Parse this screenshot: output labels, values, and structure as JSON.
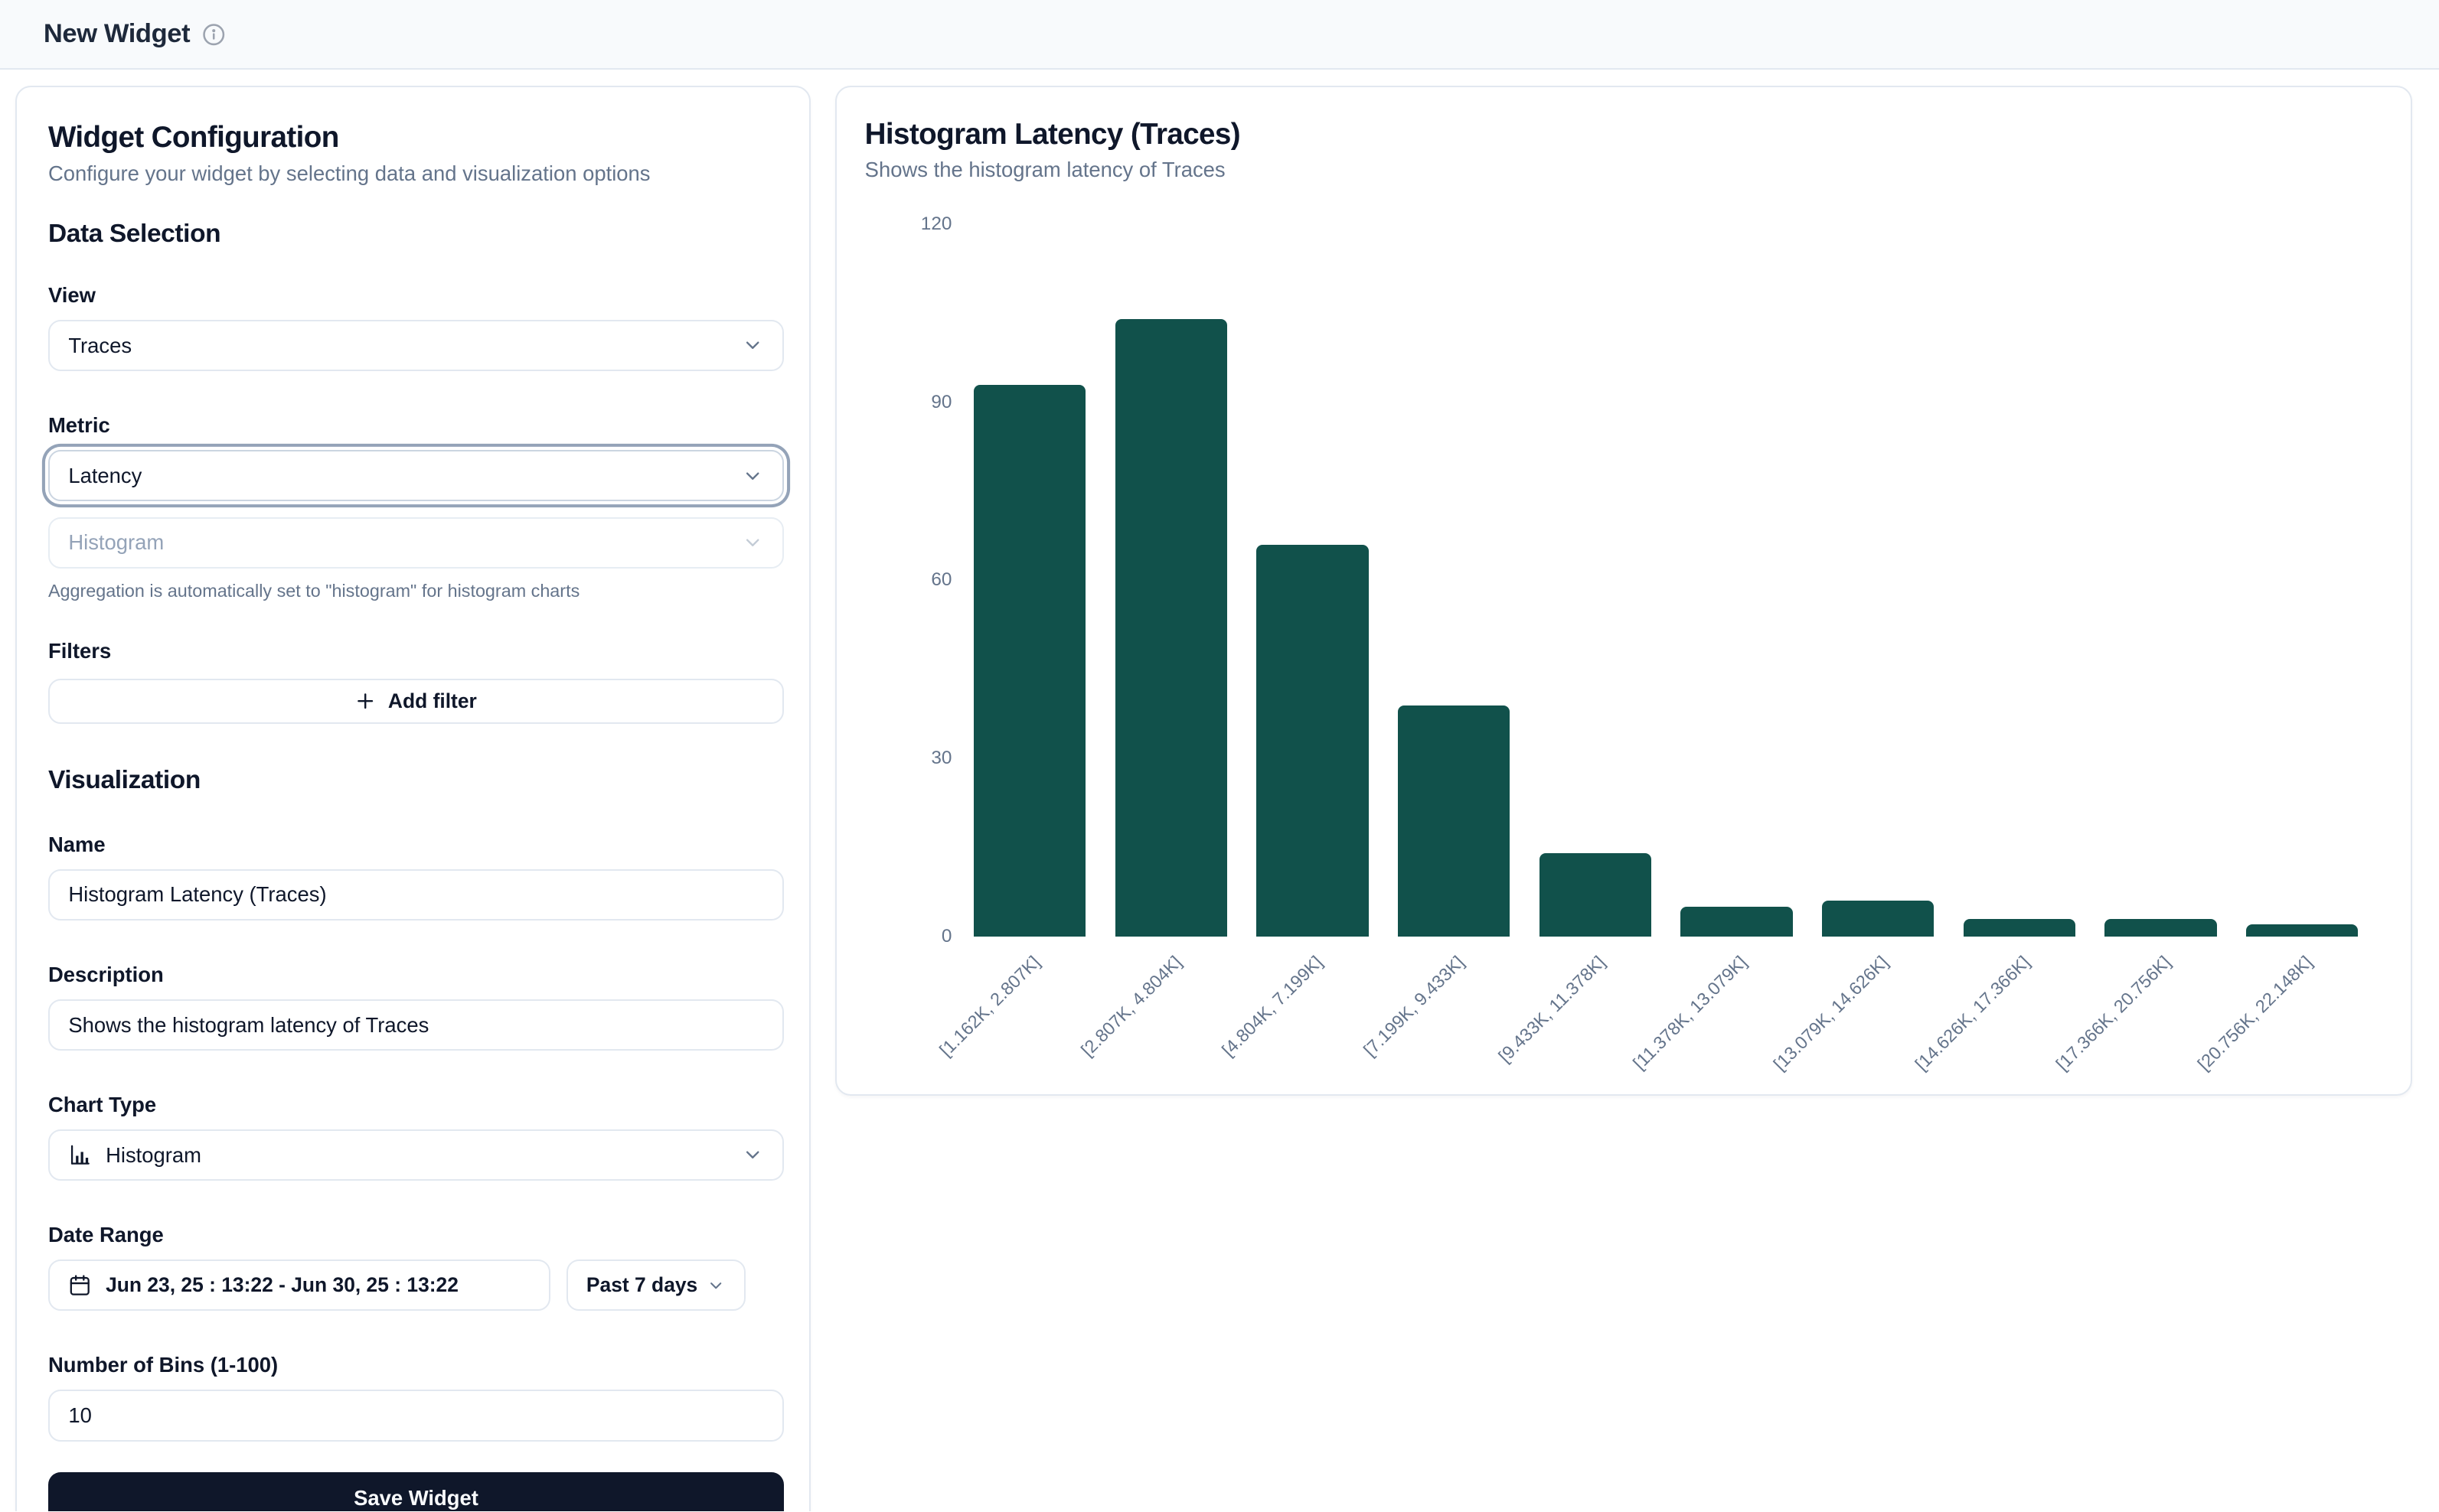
{
  "header": {
    "title": "New Widget"
  },
  "config_panel": {
    "title": "Widget Configuration",
    "subtitle": "Configure your widget by selecting data and visualization options",
    "data_selection": {
      "heading": "Data Selection",
      "view_label": "View",
      "view_value": "Traces",
      "metric_label": "Metric",
      "metric_value": "Latency",
      "aggregation_value": "Histogram",
      "aggregation_help": "Aggregation is automatically set to \"histogram\" for histogram charts",
      "filters_label": "Filters",
      "add_filter_label": "Add filter"
    },
    "visualization": {
      "heading": "Visualization",
      "name_label": "Name",
      "name_value": "Histogram Latency (Traces)",
      "description_label": "Description",
      "description_value": "Shows the histogram latency of Traces",
      "chart_type_label": "Chart Type",
      "chart_type_value": "Histogram",
      "date_range_label": "Date Range",
      "date_range_value": "Jun 23, 25 : 13:22 - Jun 30, 25 : 13:22",
      "date_preset_value": "Past 7 days",
      "bins_label": "Number of Bins (1-100)",
      "bins_value": "10"
    },
    "save_label": "Save Widget"
  },
  "preview_panel": {
    "title": "Histogram Latency (Traces)",
    "subtitle": "Shows the histogram latency of Traces"
  },
  "chart_data": {
    "type": "bar",
    "title": "Histogram Latency (Traces)",
    "categories": [
      "[1.162K, 2.807K]",
      "[2.807K, 4.804K]",
      "[4.804K, 7.199K]",
      "[7.199K, 9.433K]",
      "[9.433K, 11.378K]",
      "[11.378K, 13.079K]",
      "[13.079K, 14.626K]",
      "[14.626K, 17.366K]",
      "[17.366K, 20.756K]",
      "[20.756K, 22.148K]"
    ],
    "values": [
      93,
      104,
      66,
      39,
      14,
      5,
      6,
      3,
      3,
      2
    ],
    "xlabel": "",
    "ylabel": "",
    "ylim": [
      0,
      120
    ],
    "yticks": [
      0,
      30,
      60,
      90,
      120
    ],
    "grid": false,
    "legend": false,
    "bar_color": "#11514b",
    "axis_label_color": "#64748b"
  },
  "colors": {
    "accent_teal": "#11514b",
    "header_bg": "#f8fafc",
    "border": "#e2e8f0",
    "text": "#0f172a",
    "muted": "#64748b",
    "disabled": "#94a3b8",
    "save_bg": "#0f172a"
  }
}
